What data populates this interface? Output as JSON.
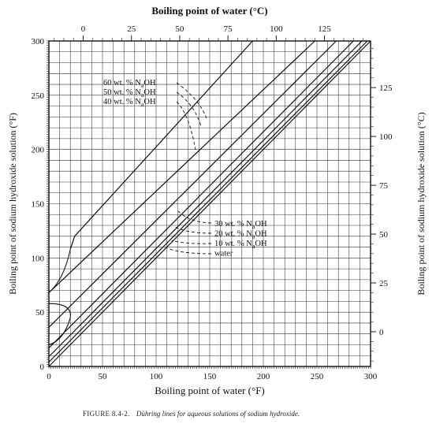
{
  "chart_data": {
    "type": "line",
    "top_axis_label": "Boiling point of water (°C)",
    "xlabel": "Boiling point of water (°F)",
    "ylabel": "Boiling point of sodium hydroxide solution (°F)",
    "right_axis_label": "Boiling point of sodium hydroxide solution (°C)",
    "xlim": [
      0,
      300
    ],
    "ylim": [
      0,
      300
    ],
    "x_ticks": [
      "0",
      "50",
      "100",
      "150",
      "200",
      "250",
      "300"
    ],
    "y_ticks": [
      "0",
      "50",
      "100",
      "150",
      "200",
      "250",
      "300"
    ],
    "top_ticks": [
      "0",
      "25",
      "50",
      "75",
      "100",
      "125"
    ],
    "right_ticks": [
      "0",
      "25",
      "50",
      "75",
      "100",
      "125"
    ],
    "grid": true,
    "series": [
      {
        "name": "60 wt. % NaOH",
        "x": [
          20,
          24,
          190
        ],
        "y": [
          108,
          120,
          300
        ]
      },
      {
        "name": "50 wt. % NaOH",
        "x": [
          0,
          248
        ],
        "y": [
          68,
          300
        ]
      },
      {
        "name": "40 wt. % NaOH",
        "x": [
          0,
          268
        ],
        "y": [
          36,
          300
        ]
      },
      {
        "name": "30 wt. % NaOH",
        "x": [
          0,
          284
        ],
        "y": [
          17,
          300
        ]
      },
      {
        "name": "20 wt. % NaOH",
        "x": [
          0,
          292
        ],
        "y": [
          9,
          300
        ]
      },
      {
        "name": "10 wt. % NaOH",
        "x": [
          0,
          297
        ],
        "y": [
          4,
          300
        ]
      },
      {
        "name": "water",
        "x": [
          0,
          300
        ],
        "y": [
          0,
          300
        ]
      }
    ],
    "legend_groups": [
      {
        "lines": [
          {
            "text": "60 wt. % N",
            "sub": "a",
            "suffix": "OH"
          },
          {
            "text": "50 wt. % N",
            "sub": "a",
            "suffix": "OH"
          },
          {
            "text": "40 wt. % N",
            "sub": "a",
            "suffix": "OH"
          }
        ]
      },
      {
        "lines": [
          {
            "text": "30 wt. % N",
            "sub": "a",
            "suffix": "OH"
          },
          {
            "text": "20 wt. % N",
            "sub": "a",
            "suffix": "OH"
          },
          {
            "text": "10 wt. % N",
            "sub": "a",
            "suffix": "OH"
          },
          {
            "text": "water",
            "sub": "",
            "suffix": ""
          }
        ]
      }
    ]
  },
  "caption": {
    "figure": "FIGURE 8.4-2.",
    "text": "Dühring lines for aqueous solutions of sodium hydroxide."
  }
}
